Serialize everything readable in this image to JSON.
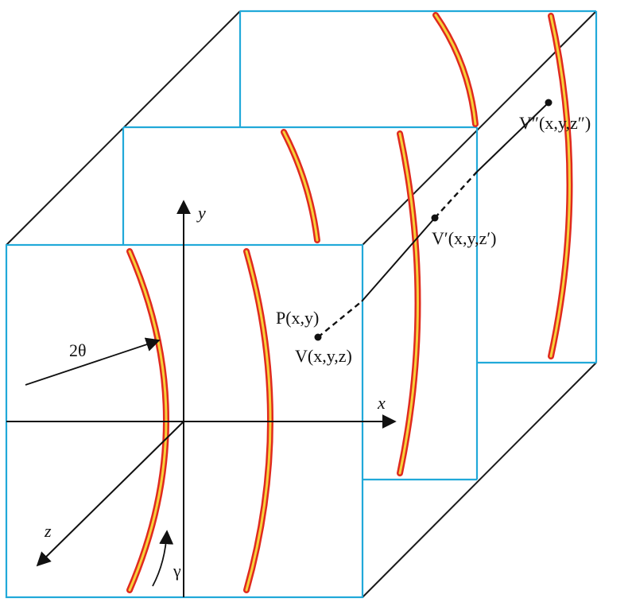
{
  "labels": {
    "axis_y": "y",
    "axis_x": "x",
    "axis_z": "z",
    "angle_2theta": "2θ",
    "angle_gamma": "γ",
    "point_p": "P(x,y)",
    "point_v": "V(x,y,z)",
    "point_v_prime": "V′(x,y,z′)",
    "point_v_double_prime": "V″(x,y,z″)"
  },
  "colors": {
    "frame_cyan": "#21a9d9",
    "edge_black": "#1a1a1a",
    "arc_red": "#e02a1e",
    "arc_yellow": "#f7d23a"
  }
}
